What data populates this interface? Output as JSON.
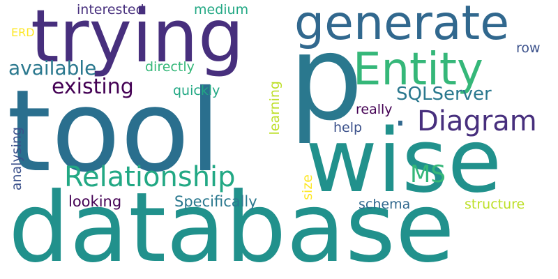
{
  "words": {
    "database": "database",
    "tool": "tool",
    "wise": "wise",
    "p": "p",
    "trying": "trying",
    "generate": "generate",
    "entity": "Entity",
    "diagram": "Diagram",
    "relationship": "Relationship",
    "existing": "existing",
    "available": "available",
    "sqlserver": "SQLServer",
    "ms": "MS",
    "specifically": "Specifically",
    "looking": "looking",
    "schema": "schema",
    "structure": "structure",
    "interested": "interested",
    "medium": "medium",
    "directly": "directly",
    "quickly": "quickly",
    "really": "really",
    "help": "help",
    "row": "row",
    "erd": "ERD",
    "analysing": "analysing",
    "learning": "learning",
    "size": "size",
    "dot": "."
  },
  "colors": {
    "background": "#ffffff",
    "dark_purple": "#440154",
    "indigo": "#472f7d",
    "blue_violet": "#3b518b",
    "slate_blue": "#31688e",
    "teal_blue": "#2a788e",
    "teal": "#21918c",
    "green_teal": "#22a884",
    "green": "#35b779",
    "light_green": "#7ad151",
    "lime": "#bddf26",
    "yellow": "#fde725"
  }
}
